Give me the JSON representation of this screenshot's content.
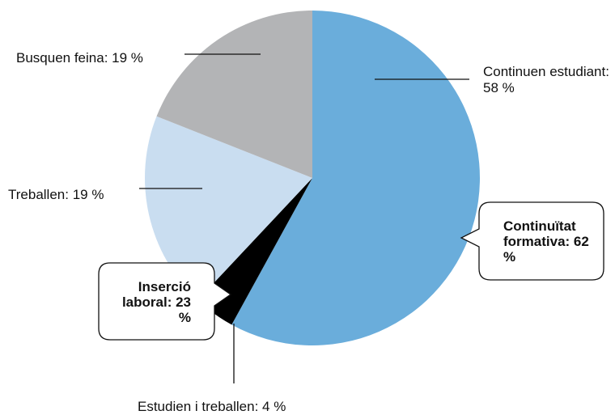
{
  "chart_data": {
    "type": "pie",
    "labels": [
      "Continuen estudiant: 58 %",
      "Estudien i treballen: 4 %",
      "Treballen: 19 %",
      "Busquen feina: 19 %"
    ],
    "values": [
      58,
      4,
      19,
      19
    ],
    "colors": [
      "#6aaddb",
      "#000000",
      "#c9ddf0",
      "#b3b4b6"
    ],
    "annotations": [
      "Continuïtat formativa: 62 %",
      "Inserció laboral: 23 %"
    ]
  }
}
